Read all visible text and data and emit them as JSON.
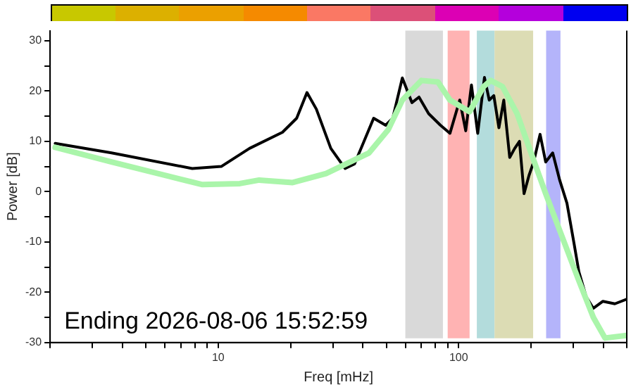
{
  "chart_data": {
    "type": "line",
    "xlabel": "Freq [mHz]",
    "ylabel": "Power [dB]",
    "annotations": [
      "Ending 2026-08-06 15:52:59"
    ],
    "log": "x",
    "grid": false,
    "legend": false,
    "marker": "none",
    "line_style": "solid",
    "xlim": [
      2,
      500
    ],
    "xticks": [
      {
        "value": 2,
        "label": null
      },
      {
        "value": 3,
        "label": null
      },
      {
        "value": 4,
        "label": null
      },
      {
        "value": 5,
        "label": null
      },
      {
        "value": 6,
        "label": null
      },
      {
        "value": 7,
        "label": null
      },
      {
        "value": 8,
        "label": null
      },
      {
        "value": 9,
        "label": null
      },
      10,
      {
        "value": 20,
        "label": null
      },
      {
        "value": 30,
        "label": null
      },
      {
        "value": 40,
        "label": null
      },
      {
        "value": 50,
        "label": null
      },
      {
        "value": 60,
        "label": null
      },
      {
        "value": 70,
        "label": null
      },
      {
        "value": 80,
        "label": null
      },
      {
        "value": 90,
        "label": null
      },
      100,
      {
        "value": 200,
        "label": null
      },
      {
        "value": 300,
        "label": null
      },
      {
        "value": 400,
        "label": null
      },
      {
        "value": 500,
        "label": null
      }
    ],
    "ylim": [
      -30,
      32
    ],
    "yticks": [
      -30,
      {
        "value": -25,
        "label": null
      },
      -20,
      {
        "value": -15,
        "label": null
      },
      -10,
      {
        "value": -5,
        "label": null
      },
      0,
      {
        "value": 5,
        "label": null
      },
      10,
      {
        "value": 15,
        "label": null
      },
      20,
      {
        "value": 25,
        "label": null
      },
      30
    ],
    "bands": [
      {
        "axis": "x",
        "from": 60,
        "to": 86,
        "color": "#d9d9d9"
      },
      {
        "axis": "x",
        "from": 90,
        "to": 111,
        "color": "#ffb3b3"
      },
      {
        "axis": "x",
        "from": 119,
        "to": 141,
        "color": "#b3dcdc"
      },
      {
        "axis": "x",
        "from": 141,
        "to": 204,
        "color": "#dcdcb4"
      },
      {
        "axis": "x",
        "from": 231,
        "to": 265,
        "color": "#b4b4fa"
      }
    ],
    "series": [
      {
        "color": "#aaf5aa",
        "x": [
          2.1,
          3.6,
          8.6,
          12.3,
          14.8,
          20.4,
          28.1,
          42.4,
          50.9,
          58.3,
          70,
          82,
          92,
          111,
          127,
          136,
          152,
          175,
          200,
          230,
          263,
          316,
          363,
          406,
          499
        ],
        "values": [
          8.8,
          5.9,
          1.4,
          1.6,
          2.3,
          1.8,
          3.6,
          7.7,
          12.3,
          18.2,
          22.1,
          21.8,
          18.2,
          15.9,
          20.9,
          22.1,
          20.9,
          15.5,
          7.7,
          -0.4,
          -7.7,
          -17.7,
          -25,
          -29.1,
          -28.6
        ]
      },
      {
        "color": "#000000",
        "x": [
          2.1,
          3.6,
          7.8,
          10.3,
          13.5,
          18.5,
          21.2,
          23.4,
          25.6,
          29.4,
          33.7,
          36.9,
          44.3,
          49.7,
          53.2,
          58.3,
          63.9,
          68.4,
          75,
          84,
          92,
          101,
          107,
          113,
          120,
          128,
          134,
          140,
          147,
          154,
          163,
          171,
          179,
          187,
          196,
          205,
          218,
          230,
          246,
          263,
          282,
          302,
          316,
          339,
          363,
          398,
          446,
          499
        ],
        "values": [
          9.6,
          7.7,
          4.6,
          5,
          8.6,
          11.8,
          14.6,
          19.7,
          16.4,
          8.6,
          4.6,
          5.5,
          14.6,
          13.2,
          14.6,
          22.6,
          17.7,
          18.8,
          15.5,
          13.2,
          11.6,
          18.2,
          12.1,
          21.2,
          11.6,
          22.7,
          18.2,
          19.1,
          12.7,
          18.2,
          6.8,
          8.6,
          10,
          -0.4,
          3.2,
          5.9,
          11.4,
          5.9,
          7.7,
          2.3,
          -2.3,
          -10.4,
          -15.9,
          -20.9,
          -23.2,
          -21.8,
          -22.3,
          -21.4
        ]
      }
    ]
  }
}
